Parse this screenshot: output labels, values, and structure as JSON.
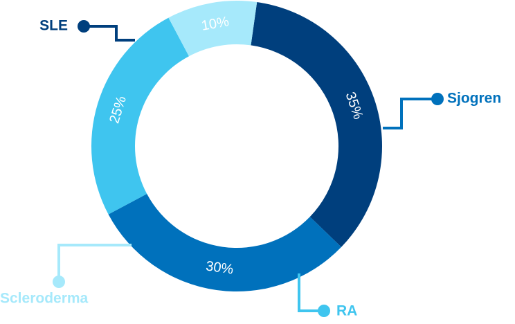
{
  "chart_data": {
    "type": "donut",
    "categories": [
      "SLE",
      "Sjogren",
      "RA",
      "Scleroderma"
    ],
    "values": [
      35,
      30,
      25,
      10
    ],
    "value_labels": [
      "35%",
      "30%",
      "25%",
      "10%"
    ],
    "colors": [
      "#003f7d",
      "#0071bc",
      "#3fc5ef",
      "#a6e9fb"
    ]
  }
}
